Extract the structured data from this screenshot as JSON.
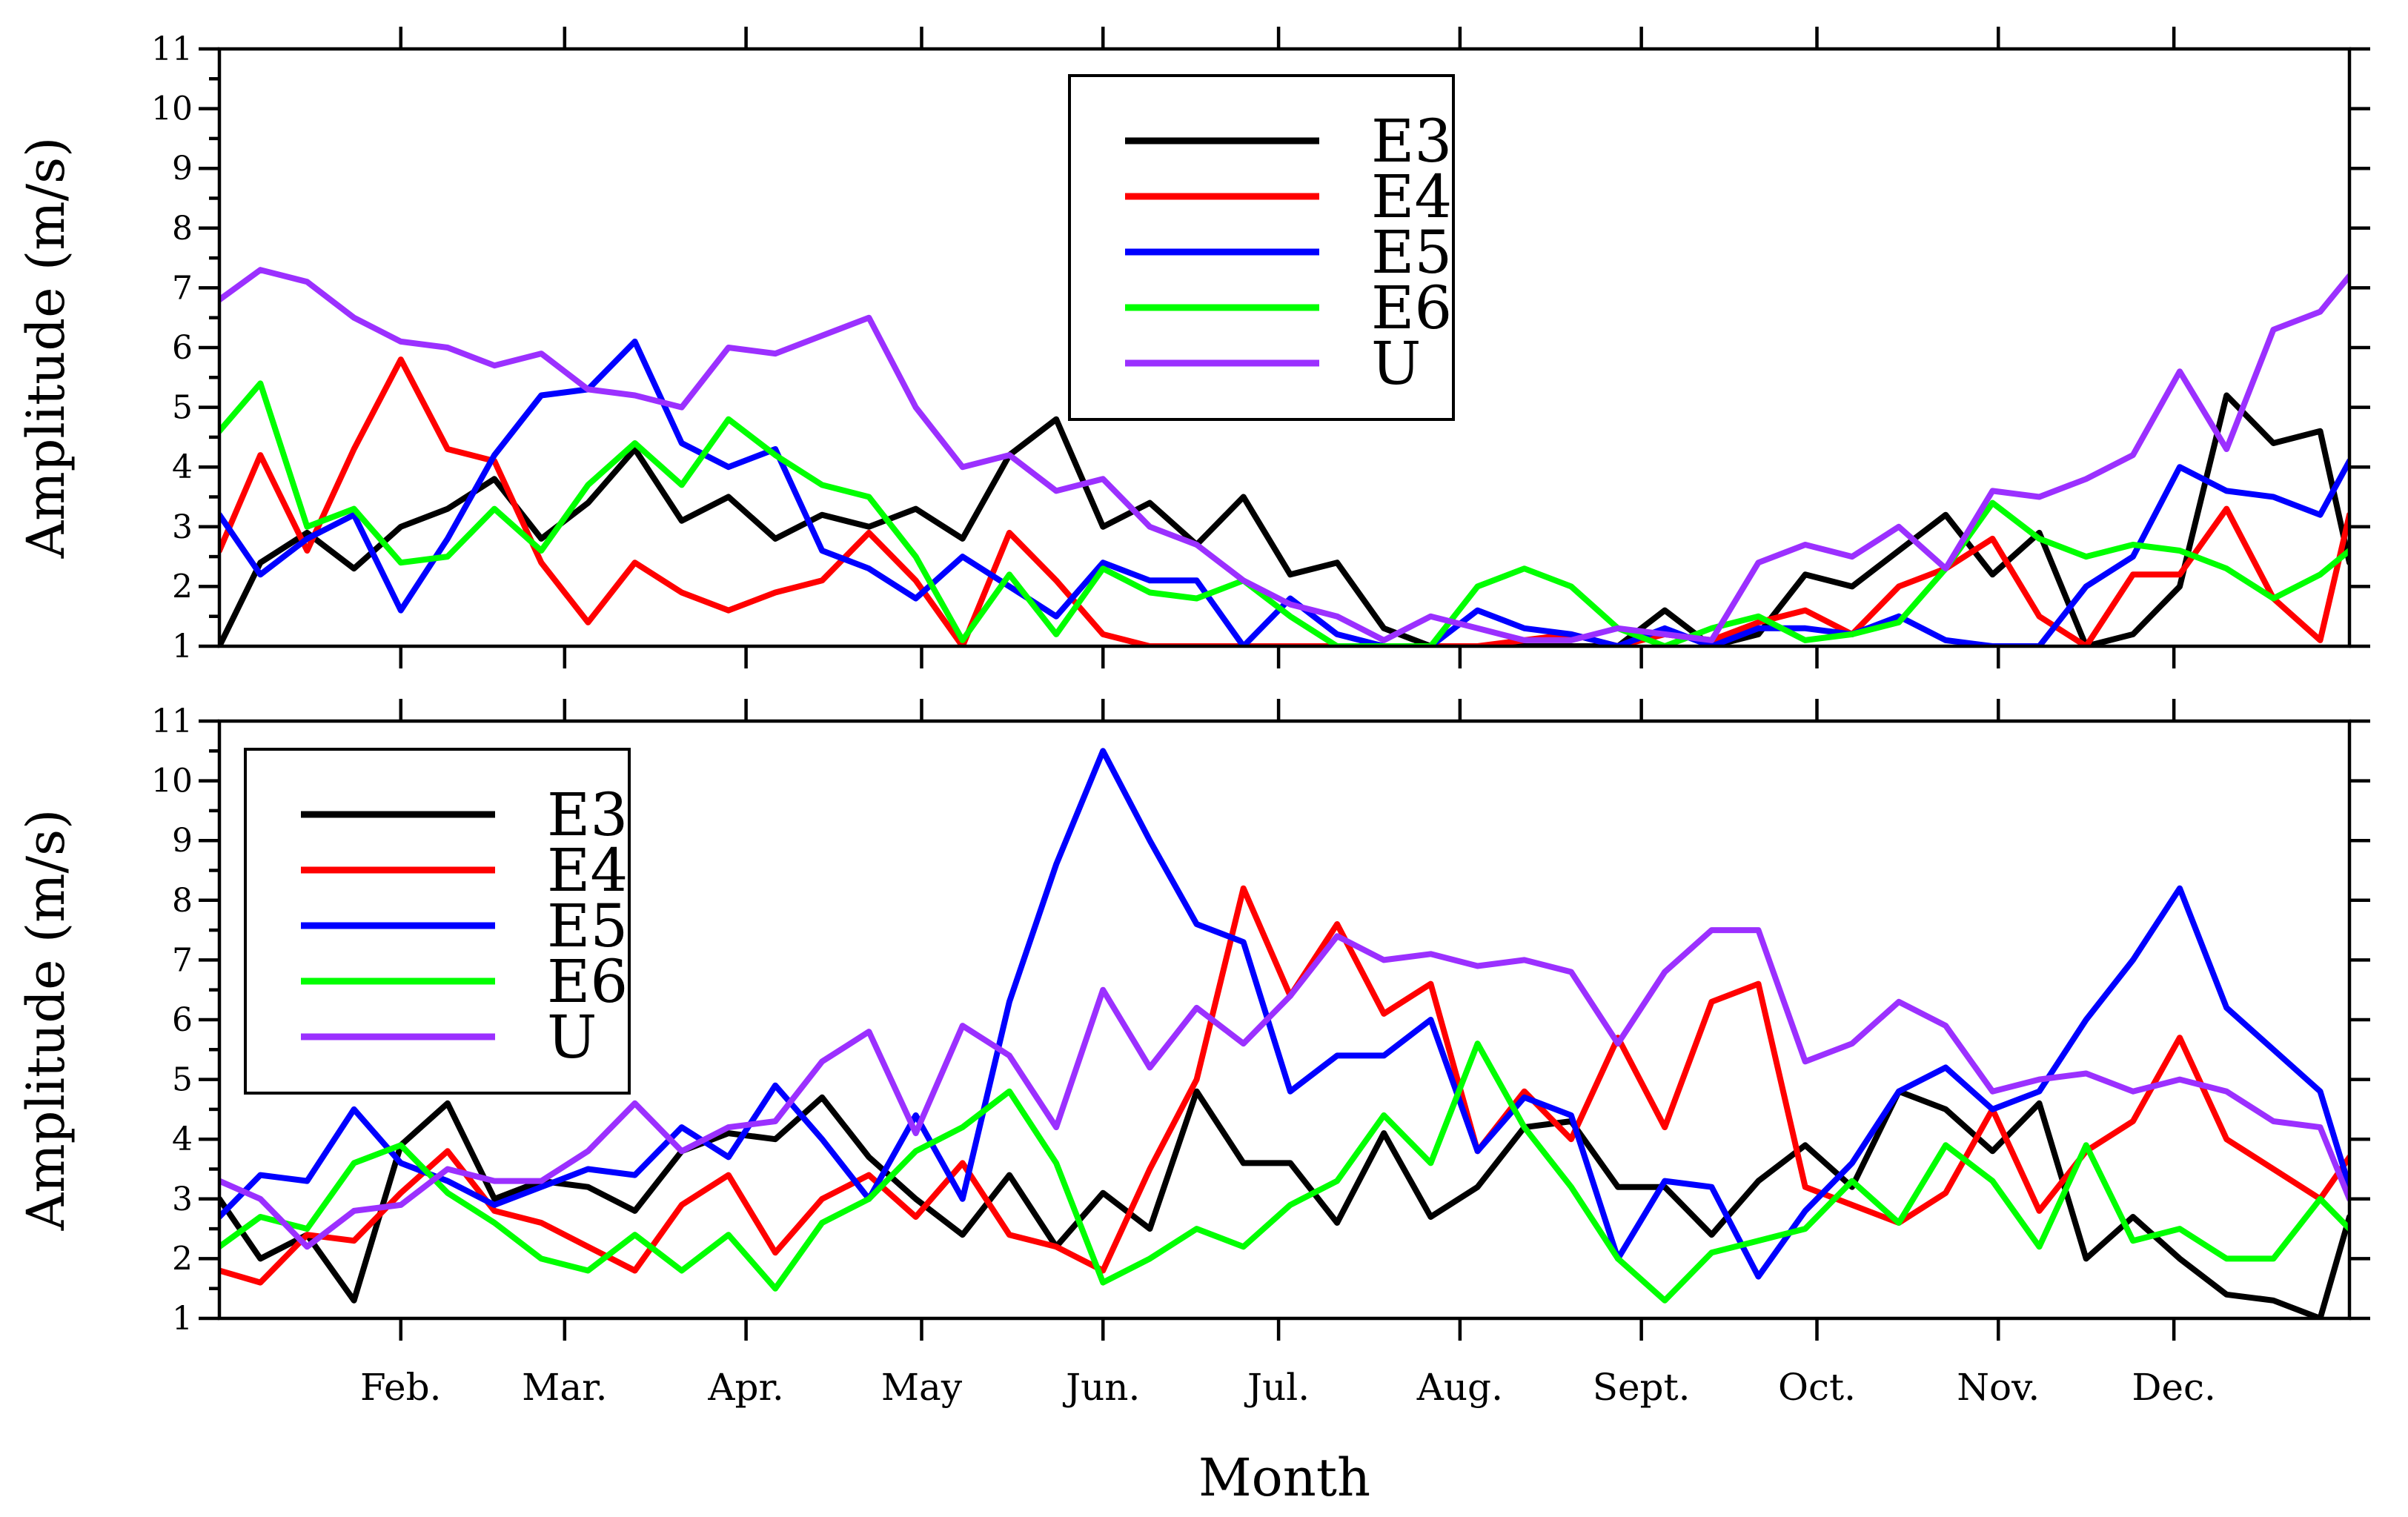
{
  "chart_data": [
    {
      "type": "line",
      "ylabel": "Amplitude (m/s)",
      "xlabel": "",
      "ylim": [
        1,
        11
      ],
      "yticks": [
        "1",
        "2",
        "3",
        "4",
        "5",
        "6",
        "7",
        "8",
        "9",
        "10",
        "11"
      ],
      "legend": "top-center",
      "x_day_range": [
        1,
        365
      ],
      "series": [
        {
          "name": "E3",
          "color": "#000000",
          "x_days": [
            1,
            8,
            16,
            24,
            32,
            40,
            48,
            56,
            64,
            72,
            80,
            88,
            96,
            104,
            112,
            120,
            128,
            136,
            144,
            152,
            160,
            168,
            176,
            184,
            192,
            200,
            208,
            216,
            224,
            232,
            240,
            248,
            256,
            264,
            272,
            280,
            288,
            296,
            304,
            312,
            320,
            328,
            336,
            344,
            352,
            360,
            365
          ],
          "values": [
            1.0,
            2.4,
            2.9,
            2.3,
            3.0,
            3.3,
            3.8,
            2.8,
            3.4,
            4.3,
            3.1,
            3.5,
            2.8,
            3.2,
            3.0,
            3.3,
            2.8,
            4.2,
            4.8,
            3.0,
            3.4,
            2.7,
            3.5,
            2.2,
            2.4,
            1.3,
            1.0,
            1.0,
            1.0,
            1.0,
            1.0,
            1.6,
            1.0,
            1.2,
            2.2,
            2.0,
            2.6,
            3.2,
            2.2,
            2.9,
            1.0,
            1.2,
            2.0,
            5.2,
            4.4,
            4.6,
            2.4
          ]
        },
        {
          "name": "E4",
          "color": "#ff0000",
          "x_days": [
            1,
            8,
            16,
            24,
            32,
            40,
            48,
            56,
            64,
            72,
            80,
            88,
            96,
            104,
            112,
            120,
            128,
            136,
            144,
            152,
            160,
            168,
            176,
            184,
            192,
            200,
            208,
            216,
            224,
            232,
            240,
            248,
            256,
            264,
            272,
            280,
            288,
            296,
            304,
            312,
            320,
            328,
            336,
            344,
            352,
            360,
            365
          ],
          "values": [
            2.6,
            4.2,
            2.6,
            4.3,
            5.8,
            4.3,
            4.1,
            2.4,
            1.4,
            2.4,
            1.9,
            1.6,
            1.9,
            2.1,
            2.9,
            2.1,
            1.0,
            2.9,
            2.1,
            1.2,
            1.0,
            1.0,
            1.0,
            1.0,
            1.0,
            1.0,
            1.0,
            1.0,
            1.1,
            1.2,
            1.0,
            1.2,
            1.1,
            1.4,
            1.6,
            1.2,
            2.0,
            2.3,
            2.8,
            1.5,
            1.0,
            2.2,
            2.2,
            3.3,
            1.8,
            1.1,
            3.2
          ]
        },
        {
          "name": "E5",
          "color": "#0000ff",
          "x_days": [
            1,
            8,
            16,
            24,
            32,
            40,
            48,
            56,
            64,
            72,
            80,
            88,
            96,
            104,
            112,
            120,
            128,
            136,
            144,
            152,
            160,
            168,
            176,
            184,
            192,
            200,
            208,
            216,
            224,
            232,
            240,
            248,
            256,
            264,
            272,
            280,
            288,
            296,
            304,
            312,
            320,
            328,
            336,
            344,
            352,
            360,
            365
          ],
          "values": [
            3.2,
            2.2,
            2.8,
            3.2,
            1.6,
            2.8,
            4.2,
            5.2,
            5.3,
            6.1,
            4.4,
            4.0,
            4.3,
            2.6,
            2.3,
            1.8,
            2.5,
            2.0,
            1.5,
            2.4,
            2.1,
            2.1,
            1.0,
            1.8,
            1.2,
            1.0,
            1.0,
            1.6,
            1.3,
            1.2,
            1.0,
            1.3,
            1.0,
            1.3,
            1.3,
            1.2,
            1.5,
            1.1,
            1.0,
            1.0,
            2.0,
            2.5,
            4.0,
            3.6,
            3.5,
            3.2,
            4.1
          ]
        },
        {
          "name": "E6",
          "color": "#00ff00",
          "x_days": [
            1,
            8,
            16,
            24,
            32,
            40,
            48,
            56,
            64,
            72,
            80,
            88,
            96,
            104,
            112,
            120,
            128,
            136,
            144,
            152,
            160,
            168,
            176,
            184,
            192,
            200,
            208,
            216,
            224,
            232,
            240,
            248,
            256,
            264,
            272,
            280,
            288,
            296,
            304,
            312,
            320,
            328,
            336,
            344,
            352,
            360,
            365
          ],
          "values": [
            4.6,
            5.4,
            3.0,
            3.3,
            2.4,
            2.5,
            3.3,
            2.6,
            3.7,
            4.4,
            3.7,
            4.8,
            4.2,
            3.7,
            3.5,
            2.5,
            1.1,
            2.2,
            1.2,
            2.3,
            1.9,
            1.8,
            2.1,
            1.5,
            1.0,
            1.0,
            1.0,
            2.0,
            2.3,
            2.0,
            1.3,
            1.0,
            1.3,
            1.5,
            1.1,
            1.2,
            1.4,
            2.3,
            3.4,
            2.8,
            2.5,
            2.7,
            2.6,
            2.3,
            1.8,
            2.2,
            2.6
          ]
        },
        {
          "name": "U",
          "color": "#9b30ff",
          "x_days": [
            1,
            8,
            16,
            24,
            32,
            40,
            48,
            56,
            64,
            72,
            80,
            88,
            96,
            104,
            112,
            120,
            128,
            136,
            144,
            152,
            160,
            168,
            176,
            184,
            192,
            200,
            208,
            216,
            224,
            232,
            240,
            248,
            256,
            264,
            272,
            280,
            288,
            296,
            304,
            312,
            320,
            328,
            336,
            344,
            352,
            360,
            365
          ],
          "values": [
            6.8,
            7.3,
            7.1,
            6.5,
            6.1,
            6.0,
            5.7,
            5.9,
            5.3,
            5.2,
            5.0,
            6.0,
            5.9,
            6.2,
            6.5,
            5.0,
            4.0,
            4.2,
            3.6,
            3.8,
            3.0,
            2.7,
            2.1,
            1.7,
            1.5,
            1.1,
            1.5,
            1.3,
            1.1,
            1.1,
            1.3,
            1.2,
            1.1,
            2.4,
            2.7,
            2.5,
            3.0,
            2.3,
            3.6,
            3.5,
            3.8,
            4.2,
            5.6,
            4.3,
            6.3,
            6.6,
            7.2
          ]
        }
      ]
    },
    {
      "type": "line",
      "ylabel": "Amplitude (m/s)",
      "xlabel": "Month",
      "ylim": [
        1,
        11
      ],
      "yticks": [
        "1",
        "2",
        "3",
        "4",
        "5",
        "6",
        "7",
        "8",
        "9",
        "10",
        "11"
      ],
      "xtick_labels": [
        "Feb.",
        "Mar.",
        "Apr.",
        "May",
        "Jun.",
        "Jul.",
        "Aug.",
        "Sept.",
        "Oct.",
        "Nov.",
        "Dec."
      ],
      "legend": "top-left",
      "x_day_range": [
        1,
        365
      ],
      "series": [
        {
          "name": "E3",
          "color": "#000000",
          "x_days": [
            1,
            8,
            16,
            24,
            32,
            40,
            48,
            56,
            64,
            72,
            80,
            88,
            96,
            104,
            112,
            120,
            128,
            136,
            144,
            152,
            160,
            168,
            176,
            184,
            192,
            200,
            208,
            216,
            224,
            232,
            240,
            248,
            256,
            264,
            272,
            280,
            288,
            296,
            304,
            312,
            320,
            328,
            336,
            344,
            352,
            360,
            365
          ],
          "values": [
            3.0,
            2.0,
            2.4,
            1.3,
            3.9,
            4.6,
            3.0,
            3.3,
            3.2,
            2.8,
            3.8,
            4.1,
            4.0,
            4.7,
            3.7,
            3.0,
            2.4,
            3.4,
            2.2,
            3.1,
            2.5,
            4.8,
            3.6,
            3.6,
            2.6,
            4.1,
            2.7,
            3.2,
            4.2,
            4.3,
            3.2,
            3.2,
            2.4,
            3.3,
            3.9,
            3.2,
            4.8,
            4.5,
            3.8,
            4.6,
            2.0,
            2.7,
            2.0,
            1.4,
            1.3,
            1.0,
            2.7
          ]
        },
        {
          "name": "E4",
          "color": "#ff0000",
          "x_days": [
            1,
            8,
            16,
            24,
            32,
            40,
            48,
            56,
            64,
            72,
            80,
            88,
            96,
            104,
            112,
            120,
            128,
            136,
            144,
            152,
            160,
            168,
            176,
            184,
            192,
            200,
            208,
            216,
            224,
            232,
            240,
            248,
            256,
            264,
            272,
            280,
            288,
            296,
            304,
            312,
            320,
            328,
            336,
            344,
            352,
            360,
            365
          ],
          "values": [
            1.8,
            1.6,
            2.4,
            2.3,
            3.1,
            3.8,
            2.8,
            2.6,
            2.2,
            1.8,
            2.9,
            3.4,
            2.1,
            3.0,
            3.4,
            2.7,
            3.6,
            2.4,
            2.2,
            1.8,
            3.5,
            5.0,
            8.2,
            6.4,
            7.6,
            6.1,
            6.6,
            3.8,
            4.8,
            4.0,
            5.7,
            4.2,
            6.3,
            6.6,
            3.2,
            2.9,
            2.6,
            3.1,
            4.5,
            2.8,
            3.8,
            4.3,
            5.7,
            4.0,
            3.5,
            3.0,
            3.7
          ]
        },
        {
          "name": "E5",
          "color": "#0000ff",
          "x_days": [
            1,
            8,
            16,
            24,
            32,
            40,
            48,
            56,
            64,
            72,
            80,
            88,
            96,
            104,
            112,
            120,
            128,
            136,
            144,
            152,
            160,
            168,
            176,
            184,
            192,
            200,
            208,
            216,
            224,
            232,
            240,
            248,
            256,
            264,
            272,
            280,
            288,
            296,
            304,
            312,
            320,
            328,
            336,
            344,
            352,
            360,
            365
          ],
          "values": [
            2.7,
            3.4,
            3.3,
            4.5,
            3.6,
            3.3,
            2.9,
            3.2,
            3.5,
            3.4,
            4.2,
            3.7,
            4.9,
            4.0,
            3.0,
            4.4,
            3.0,
            6.3,
            8.6,
            10.5,
            9.0,
            7.6,
            7.3,
            4.8,
            5.4,
            5.4,
            6.0,
            3.8,
            4.7,
            4.4,
            2.0,
            3.3,
            3.2,
            1.7,
            2.8,
            3.6,
            4.8,
            5.2,
            4.5,
            4.8,
            6.0,
            7.0,
            8.2,
            6.2,
            5.5,
            4.8,
            3.2
          ]
        },
        {
          "name": "E6",
          "color": "#00ff00",
          "x_days": [
            1,
            8,
            16,
            24,
            32,
            40,
            48,
            56,
            64,
            72,
            80,
            88,
            96,
            104,
            112,
            120,
            128,
            136,
            144,
            152,
            160,
            168,
            176,
            184,
            192,
            200,
            208,
            216,
            224,
            232,
            240,
            248,
            256,
            264,
            272,
            280,
            288,
            296,
            304,
            312,
            320,
            328,
            336,
            344,
            352,
            360,
            365
          ],
          "values": [
            2.2,
            2.7,
            2.5,
            3.6,
            3.9,
            3.1,
            2.6,
            2.0,
            1.8,
            2.4,
            1.8,
            2.4,
            1.5,
            2.6,
            3.0,
            3.8,
            4.2,
            4.8,
            3.6,
            1.6,
            2.0,
            2.5,
            2.2,
            2.9,
            3.3,
            4.4,
            3.6,
            5.6,
            4.2,
            3.2,
            2.0,
            1.3,
            2.1,
            2.3,
            2.5,
            3.3,
            2.6,
            3.9,
            3.3,
            2.2,
            3.9,
            2.3,
            2.5,
            2.0,
            2.0,
            3.0,
            2.5
          ]
        },
        {
          "name": "U",
          "color": "#9b30ff",
          "x_days": [
            1,
            8,
            16,
            24,
            32,
            40,
            48,
            56,
            64,
            72,
            80,
            88,
            96,
            104,
            112,
            120,
            128,
            136,
            144,
            152,
            160,
            168,
            176,
            184,
            192,
            200,
            208,
            216,
            224,
            232,
            240,
            248,
            256,
            264,
            272,
            280,
            288,
            296,
            304,
            312,
            320,
            328,
            336,
            344,
            352,
            360,
            365
          ],
          "values": [
            3.3,
            3.0,
            2.2,
            2.8,
            2.9,
            3.5,
            3.3,
            3.3,
            3.8,
            4.6,
            3.8,
            4.2,
            4.3,
            5.3,
            5.8,
            4.1,
            5.9,
            5.4,
            4.2,
            6.5,
            5.2,
            6.2,
            5.6,
            6.4,
            7.4,
            7.0,
            7.1,
            6.9,
            7.0,
            6.8,
            5.6,
            6.8,
            7.5,
            7.5,
            5.3,
            5.6,
            6.3,
            5.9,
            4.8,
            5.0,
            5.1,
            4.8,
            5.0,
            4.8,
            4.3,
            4.2,
            3.0
          ]
        }
      ]
    }
  ]
}
